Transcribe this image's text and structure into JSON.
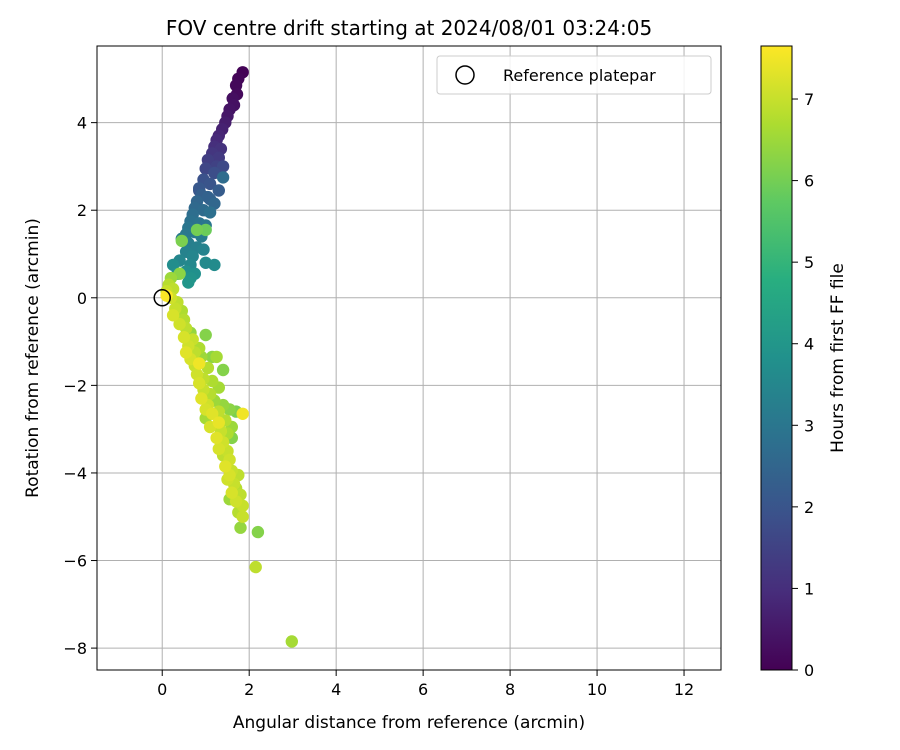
{
  "chart_data": {
    "type": "scatter",
    "title": "FOV centre drift starting at 2024/08/01 03:24:05",
    "xlabel": "Angular distance from reference (arcmin)",
    "ylabel": "Rotation from reference (arcmin)",
    "xlim": [
      -1.5,
      12.85
    ],
    "ylim": [
      -8.5,
      5.75
    ],
    "xticks": [
      0,
      2,
      4,
      6,
      8,
      10,
      12
    ],
    "yticks": [
      -8,
      -6,
      -4,
      -2,
      0,
      2,
      4
    ],
    "grid": true,
    "legend": {
      "position": "top-right",
      "entries": [
        "Reference platepar"
      ]
    },
    "reference_point": {
      "x": 0,
      "y": 0
    },
    "colorbar": {
      "label": "Hours from first FF file",
      "colormap": "viridis",
      "range": [
        0,
        7.65
      ],
      "ticks": [
        0,
        1,
        2,
        3,
        4,
        5,
        6,
        7
      ]
    },
    "series": [
      {
        "points": [
          [
            1.85,
            5.15,
            0.05
          ],
          [
            1.75,
            5.0,
            0.1
          ],
          [
            1.7,
            4.85,
            0.15
          ],
          [
            1.72,
            4.65,
            0.2
          ],
          [
            1.62,
            4.55,
            0.3
          ],
          [
            1.65,
            4.4,
            0.35
          ],
          [
            1.55,
            4.3,
            0.4
          ],
          [
            1.5,
            4.15,
            0.5
          ],
          [
            1.45,
            4.0,
            0.6
          ],
          [
            1.38,
            3.85,
            0.7
          ],
          [
            1.3,
            3.7,
            0.8
          ],
          [
            1.25,
            3.6,
            0.9
          ],
          [
            1.2,
            3.45,
            1.0
          ],
          [
            1.35,
            3.4,
            1.1
          ],
          [
            1.15,
            3.3,
            1.2
          ],
          [
            1.3,
            3.2,
            1.3
          ],
          [
            1.05,
            3.15,
            1.4
          ],
          [
            1.25,
            3.0,
            1.5
          ],
          [
            1.0,
            2.95,
            1.6
          ],
          [
            1.4,
            3.0,
            1.7
          ],
          [
            1.2,
            2.85,
            1.8
          ],
          [
            0.95,
            2.7,
            1.9
          ],
          [
            1.1,
            2.6,
            2.0
          ],
          [
            0.85,
            2.5,
            2.1
          ],
          [
            1.3,
            2.45,
            2.2
          ],
          [
            0.9,
            2.35,
            2.3
          ],
          [
            1.05,
            2.3,
            2.4
          ],
          [
            0.8,
            2.2,
            2.5
          ],
          [
            1.2,
            2.15,
            2.55
          ],
          [
            0.75,
            2.05,
            2.6
          ],
          [
            0.95,
            2.0,
            2.65
          ],
          [
            1.4,
            2.75,
            2.7
          ],
          [
            0.7,
            1.9,
            2.75
          ],
          [
            1.1,
            1.95,
            2.8
          ],
          [
            0.65,
            1.75,
            2.85
          ],
          [
            0.85,
            1.7,
            2.9
          ],
          [
            0.6,
            1.6,
            2.95
          ],
          [
            1.0,
            1.65,
            3.0
          ],
          [
            0.55,
            1.45,
            3.05
          ],
          [
            0.75,
            1.5,
            3.1
          ],
          [
            0.45,
            1.35,
            3.15
          ],
          [
            0.9,
            1.4,
            3.2
          ],
          [
            0.6,
            1.25,
            3.25
          ],
          [
            0.8,
            1.15,
            3.3
          ],
          [
            0.55,
            1.05,
            3.35
          ],
          [
            0.95,
            1.1,
            3.4
          ],
          [
            0.7,
            0.95,
            3.45
          ],
          [
            0.4,
            0.85,
            3.5
          ],
          [
            0.65,
            0.75,
            3.55
          ],
          [
            1.0,
            0.8,
            3.6
          ],
          [
            1.2,
            0.75,
            3.65
          ],
          [
            0.25,
            0.75,
            3.7
          ],
          [
            0.55,
            0.6,
            3.75
          ],
          [
            0.75,
            0.55,
            3.8
          ],
          [
            0.35,
            0.55,
            3.85
          ],
          [
            0.65,
            0.45,
            3.9
          ],
          [
            0.6,
            0.35,
            3.95
          ],
          [
            0.85,
            2.45,
            1.95
          ],
          [
            1.1,
            2.25,
            2.35
          ],
          [
            0.45,
            1.3,
            6.1
          ],
          [
            0.8,
            1.55,
            6.0
          ],
          [
            1.0,
            1.55,
            5.9
          ],
          [
            0.4,
            0.55,
            6.3
          ],
          [
            0.2,
            0.45,
            6.5
          ],
          [
            0.15,
            0.3,
            6.8
          ],
          [
            0.1,
            0.15,
            7.0
          ],
          [
            0.25,
            0.2,
            6.9
          ],
          [
            0.2,
            0.0,
            7.1
          ],
          [
            0.1,
            0.05,
            7.6
          ],
          [
            0.35,
            -0.1,
            6.9
          ],
          [
            0.3,
            -0.25,
            7.0
          ],
          [
            0.45,
            -0.3,
            6.7
          ],
          [
            0.25,
            -0.4,
            7.2
          ],
          [
            0.5,
            -0.5,
            6.8
          ],
          [
            0.4,
            -0.6,
            7.1
          ],
          [
            0.55,
            -0.7,
            6.9
          ],
          [
            0.65,
            -0.8,
            6.4
          ],
          [
            1.0,
            -0.85,
            6.2
          ],
          [
            0.5,
            -0.9,
            7.2
          ],
          [
            0.7,
            -0.95,
            7.0
          ],
          [
            0.6,
            -1.1,
            7.1
          ],
          [
            0.85,
            -1.15,
            6.7
          ],
          [
            0.75,
            -1.25,
            6.9
          ],
          [
            0.55,
            -1.25,
            7.3
          ],
          [
            0.9,
            -1.35,
            6.5
          ],
          [
            1.15,
            -1.35,
            6.3
          ],
          [
            0.65,
            -1.4,
            7.2
          ],
          [
            1.25,
            -1.35,
            6.6
          ],
          [
            0.85,
            -1.5,
            7.5
          ],
          [
            0.75,
            -1.55,
            7.0
          ],
          [
            1.05,
            -1.6,
            6.8
          ],
          [
            1.4,
            -1.65,
            6.2
          ],
          [
            0.8,
            -1.75,
            7.1
          ],
          [
            0.95,
            -1.85,
            6.9
          ],
          [
            1.15,
            -1.9,
            6.7
          ],
          [
            0.85,
            -1.95,
            7.2
          ],
          [
            1.3,
            -2.05,
            6.6
          ],
          [
            0.95,
            -2.1,
            7.0
          ],
          [
            1.1,
            -2.2,
            6.8
          ],
          [
            0.9,
            -2.3,
            7.3
          ],
          [
            1.2,
            -2.35,
            6.5
          ],
          [
            1.05,
            -2.45,
            7.1
          ],
          [
            1.4,
            -2.45,
            6.4
          ],
          [
            1.0,
            -2.55,
            7.2
          ],
          [
            1.55,
            -2.55,
            6.3
          ],
          [
            1.7,
            -2.6,
            6.1
          ],
          [
            1.3,
            -2.6,
            6.9
          ],
          [
            1.15,
            -2.65,
            7.3
          ],
          [
            1.85,
            -2.65,
            7.5
          ],
          [
            1.0,
            -2.75,
            6.6
          ],
          [
            1.45,
            -2.8,
            6.8
          ],
          [
            1.3,
            -2.85,
            7.4
          ],
          [
            1.6,
            -2.95,
            6.5
          ],
          [
            1.1,
            -2.95,
            7.2
          ],
          [
            1.35,
            -3.05,
            7.0
          ],
          [
            1.5,
            -3.1,
            6.7
          ],
          [
            1.6,
            -3.2,
            6.2
          ],
          [
            1.25,
            -3.2,
            7.3
          ],
          [
            1.4,
            -3.3,
            7.1
          ],
          [
            1.3,
            -3.45,
            7.2
          ],
          [
            1.5,
            -3.5,
            7.0
          ],
          [
            1.4,
            -3.6,
            6.9
          ],
          [
            1.55,
            -3.7,
            7.1
          ],
          [
            1.45,
            -3.85,
            7.3
          ],
          [
            1.6,
            -3.95,
            7.0
          ],
          [
            1.55,
            -4.05,
            7.2
          ],
          [
            1.75,
            -4.05,
            6.9
          ],
          [
            1.5,
            -4.15,
            7.1
          ],
          [
            1.65,
            -4.25,
            7.0
          ],
          [
            1.7,
            -4.35,
            6.8
          ],
          [
            1.6,
            -4.45,
            7.2
          ],
          [
            1.8,
            -4.5,
            6.9
          ],
          [
            1.55,
            -4.6,
            6.5
          ],
          [
            1.7,
            -4.65,
            7.1
          ],
          [
            1.85,
            -4.75,
            7.0
          ],
          [
            1.75,
            -4.9,
            6.8
          ],
          [
            1.85,
            -5.0,
            7.0
          ],
          [
            1.8,
            -5.25,
            6.4
          ],
          [
            2.2,
            -5.35,
            6.2
          ],
          [
            2.15,
            -6.15,
            6.9
          ],
          [
            2.98,
            -7.85,
            6.6
          ]
        ]
      }
    ]
  }
}
